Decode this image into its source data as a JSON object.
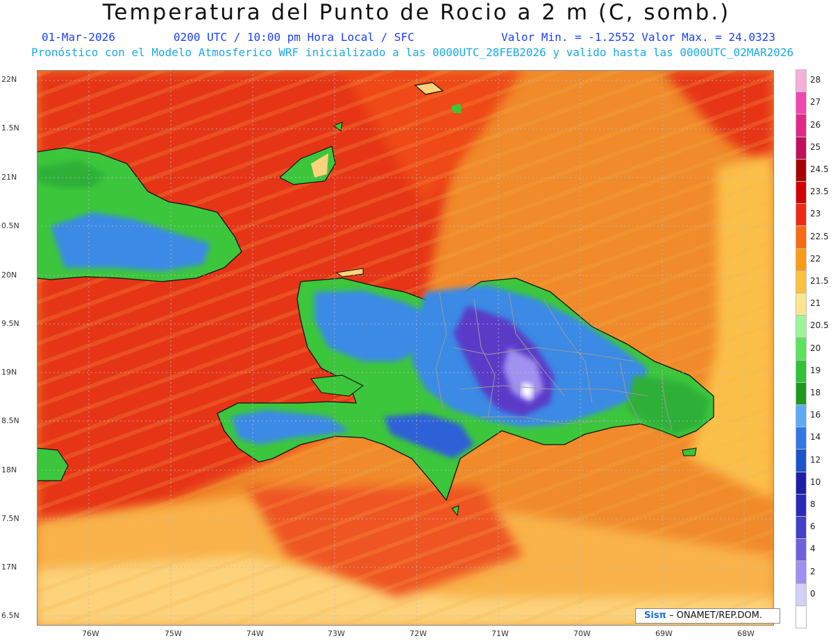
{
  "title": "Temperatura del Punto de Rocio a 2 m (C, somb.)",
  "info": {
    "date": "01-Mar-2026",
    "time": "0200 UTC / 10:00 pm Hora Local / SFC",
    "minmax": "Valor Min. = -1.2552  Valor Max. = 24.0323",
    "model": "Pronóstico con el Modelo Atmosferico WRF inicializado a las 0000UTC_28FEB2026 y valido hasta las  0000UTC_02MAR2026"
  },
  "lat_labels": [
    "22N",
    "1.5N",
    "21N",
    "0.5N",
    "20N",
    "9.5N",
    "19N",
    "8.5N",
    "18N",
    "7.5N",
    "17N",
    "6.5N"
  ],
  "lon_labels": [
    "76W",
    "75W",
    "74W",
    "73W",
    "72W",
    "71W",
    "70W",
    "69W",
    "68W"
  ],
  "colorbar": {
    "labels": [
      "28",
      "27",
      "26",
      "25",
      "24.5",
      "23.5",
      "23",
      "22.5",
      "22",
      "21.5",
      "21",
      "20.5",
      "20",
      "19",
      "18",
      "16",
      "14",
      "12",
      "10",
      "8",
      "6",
      "4",
      "2",
      "0"
    ],
    "colors": [
      "#f5b0d8",
      "#f048b0",
      "#e02a88",
      "#c0105a",
      "#a80000",
      "#d40000",
      "#ee2a10",
      "#fa6a10",
      "#fb9a14",
      "#fcc23c",
      "#fde690",
      "#9ef598",
      "#58e55c",
      "#2ec338",
      "#1a9a1e",
      "#5eaaf5",
      "#2e78e8",
      "#1a55cc",
      "#1c1ea8",
      "#2a2ab8",
      "#4040c8",
      "#7060dc",
      "#a090f0",
      "#d0d0f8",
      "#ffffff"
    ]
  },
  "credit": {
    "sis": "Sisπ",
    "rest": " – ONAMET/REP.DOM."
  },
  "colors": {
    "sea_orange": "#f08a2a",
    "sea_red": "#e63418",
    "sea_yellow": "#fbc04a",
    "land_green": "#3cc63c",
    "land_blue": "#3b8ae6",
    "land_purple": "#5a3ac8"
  }
}
